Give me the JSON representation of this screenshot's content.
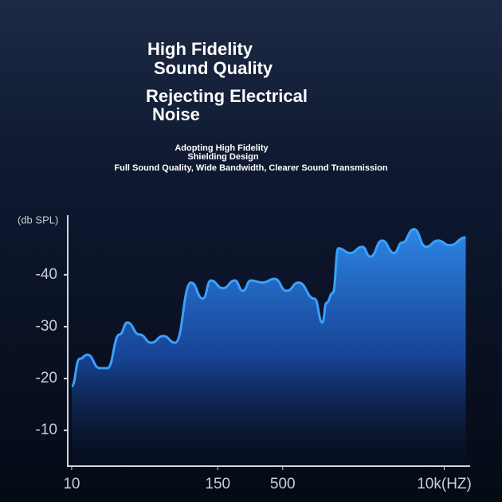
{
  "chart_data": {
    "type": "area",
    "headline": [
      "High Fidelity",
      "Sound Quality",
      "Rejecting Electrical",
      "Noise"
    ],
    "subtitle": [
      "Adopting High Fidelity",
      "Shielding Design",
      "Full Sound Quality, Wide Bandwidth, Clearer Sound Transmission"
    ],
    "y_label": "(db SPL)",
    "x": [
      10,
      11.6,
      13.4,
      16.8,
      19.4,
      24.3,
      28.1,
      35.1,
      43.8,
      54.6,
      68.1,
      91.5,
      114,
      132,
      165,
      206,
      239,
      277,
      345,
      431,
      538,
      671,
      902,
      1045,
      1125,
      1267,
      1403,
      1753,
      2188,
      2535,
      3162,
      3945,
      4571,
      5703,
      7122,
      8892,
      11090,
      14890
    ],
    "values": [
      -18.5,
      -23.8,
      -24.6,
      -22,
      -22,
      -28.5,
      -30.8,
      -28.5,
      -26.9,
      -28.2,
      -26.9,
      -38.5,
      -35.4,
      -38.9,
      -37.4,
      -38.9,
      -36.9,
      -38.9,
      -38.5,
      -39.2,
      -36.9,
      -38.5,
      -35.4,
      -30.8,
      -34.6,
      -36.5,
      -45.1,
      -44.2,
      -45.4,
      -43.5,
      -46.6,
      -44.2,
      -46.2,
      -48.8,
      -45.4,
      -46.6,
      -45.7,
      -47.2
    ],
    "color": "#3aa0ff",
    "xlim": [
      9.3,
      15000
    ],
    "xticks": [
      10,
      150,
      500,
      {
        "value": 10000,
        "label": "10k(HZ)"
      }
    ],
    "x_log": true,
    "ylim": [
      -3.1,
      -51.5
    ],
    "yticks": [
      -10,
      -20,
      -30,
      -40
    ]
  }
}
